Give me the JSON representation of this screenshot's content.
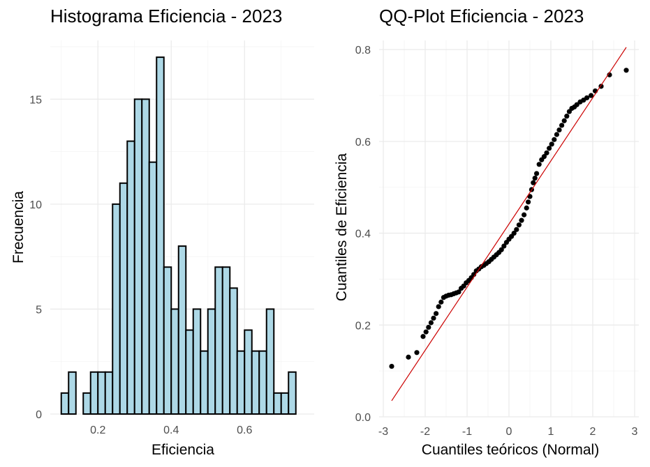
{
  "chart_data": [
    {
      "type": "bar",
      "title": "Histograma Eficiencia - 2023",
      "xlabel": "Eficiencia",
      "ylabel": "Frecuencia",
      "x_ticks": [
        0.2,
        0.4,
        0.6
      ],
      "x_tick_labels": [
        "0.2",
        "0.4",
        "0.6"
      ],
      "y_ticks": [
        0,
        5,
        10,
        15
      ],
      "y_tick_labels": [
        "0",
        "5",
        "10",
        "15"
      ],
      "xlim": [
        0.07,
        0.79
      ],
      "ylim": [
        0,
        17.8
      ],
      "bin_width": 0.02,
      "bin_start": 0.1,
      "values": [
        1,
        2,
        0,
        1,
        2,
        2,
        2,
        10,
        11,
        13,
        15,
        15,
        12,
        17,
        7,
        5,
        8,
        4,
        5,
        3,
        5,
        7,
        7,
        6,
        3,
        4,
        3,
        3,
        5,
        1,
        1,
        2
      ],
      "bar_fill": "#add8e6",
      "bar_stroke": "#000000",
      "grid": true
    },
    {
      "type": "scatter",
      "title": "QQ-Plot Eficiencia - 2023",
      "xlabel": "Cuantiles teóricos (Normal)",
      "ylabel": "Cuantiles de Eficiencia",
      "x_ticks": [
        -3,
        -2,
        -1,
        0,
        1,
        2,
        3
      ],
      "x_tick_labels": [
        "-3",
        "-2",
        "-1",
        "0",
        "1",
        "2",
        "3"
      ],
      "y_ticks": [
        0.0,
        0.2,
        0.4,
        0.6,
        0.8
      ],
      "y_tick_labels": [
        "0.0",
        "0.2",
        "0.4",
        "0.6",
        "0.8"
      ],
      "xlim": [
        -3.1,
        3.1
      ],
      "ylim": [
        0,
        0.82
      ],
      "reference_line": {
        "x": [
          -2.8,
          2.8
        ],
        "y": [
          0.035,
          0.805
        ],
        "color": "#cc0000"
      },
      "point_color": "#000000",
      "points": [
        [
          -2.8,
          0.11
        ],
        [
          -2.4,
          0.13
        ],
        [
          -2.2,
          0.14
        ],
        [
          -2.05,
          0.175
        ],
        [
          -1.98,
          0.185
        ],
        [
          -1.92,
          0.195
        ],
        [
          -1.86,
          0.205
        ],
        [
          -1.8,
          0.215
        ],
        [
          -1.74,
          0.225
        ],
        [
          -1.68,
          0.24
        ],
        [
          -1.62,
          0.25
        ],
        [
          -1.56,
          0.26
        ],
        [
          -1.5,
          0.263
        ],
        [
          -1.44,
          0.265
        ],
        [
          -1.38,
          0.266
        ],
        [
          -1.32,
          0.268
        ],
        [
          -1.26,
          0.27
        ],
        [
          -1.2,
          0.272
        ],
        [
          -1.14,
          0.28
        ],
        [
          -1.08,
          0.285
        ],
        [
          -1.02,
          0.292
        ],
        [
          -0.96,
          0.297
        ],
        [
          -0.9,
          0.303
        ],
        [
          -0.84,
          0.31
        ],
        [
          -0.78,
          0.318
        ],
        [
          -0.72,
          0.322
        ],
        [
          -0.66,
          0.327
        ],
        [
          -0.6,
          0.33
        ],
        [
          -0.54,
          0.334
        ],
        [
          -0.48,
          0.338
        ],
        [
          -0.42,
          0.343
        ],
        [
          -0.36,
          0.348
        ],
        [
          -0.3,
          0.353
        ],
        [
          -0.24,
          0.358
        ],
        [
          -0.18,
          0.364
        ],
        [
          -0.12,
          0.372
        ],
        [
          -0.06,
          0.38
        ],
        [
          0.0,
          0.387
        ],
        [
          0.06,
          0.393
        ],
        [
          0.12,
          0.4
        ],
        [
          0.18,
          0.408
        ],
        [
          0.24,
          0.418
        ],
        [
          0.3,
          0.428
        ],
        [
          0.36,
          0.44
        ],
        [
          0.42,
          0.455
        ],
        [
          0.46,
          0.468
        ],
        [
          0.5,
          0.48
        ],
        [
          0.54,
          0.495
        ],
        [
          0.58,
          0.51
        ],
        [
          0.62,
          0.52
        ],
        [
          0.66,
          0.53
        ],
        [
          0.72,
          0.55
        ],
        [
          0.78,
          0.56
        ],
        [
          0.84,
          0.567
        ],
        [
          0.9,
          0.575
        ],
        [
          0.96,
          0.585
        ],
        [
          1.02,
          0.594
        ],
        [
          1.08,
          0.604
        ],
        [
          1.14,
          0.615
        ],
        [
          1.2,
          0.625
        ],
        [
          1.26,
          0.635
        ],
        [
          1.32,
          0.645
        ],
        [
          1.38,
          0.655
        ],
        [
          1.44,
          0.665
        ],
        [
          1.5,
          0.672
        ],
        [
          1.56,
          0.675
        ],
        [
          1.62,
          0.68
        ],
        [
          1.7,
          0.686
        ],
        [
          1.78,
          0.69
        ],
        [
          1.86,
          0.695
        ],
        [
          1.96,
          0.7
        ],
        [
          2.06,
          0.71
        ],
        [
          2.2,
          0.72
        ],
        [
          2.4,
          0.745
        ],
        [
          2.8,
          0.755
        ]
      ],
      "grid": true
    }
  ]
}
